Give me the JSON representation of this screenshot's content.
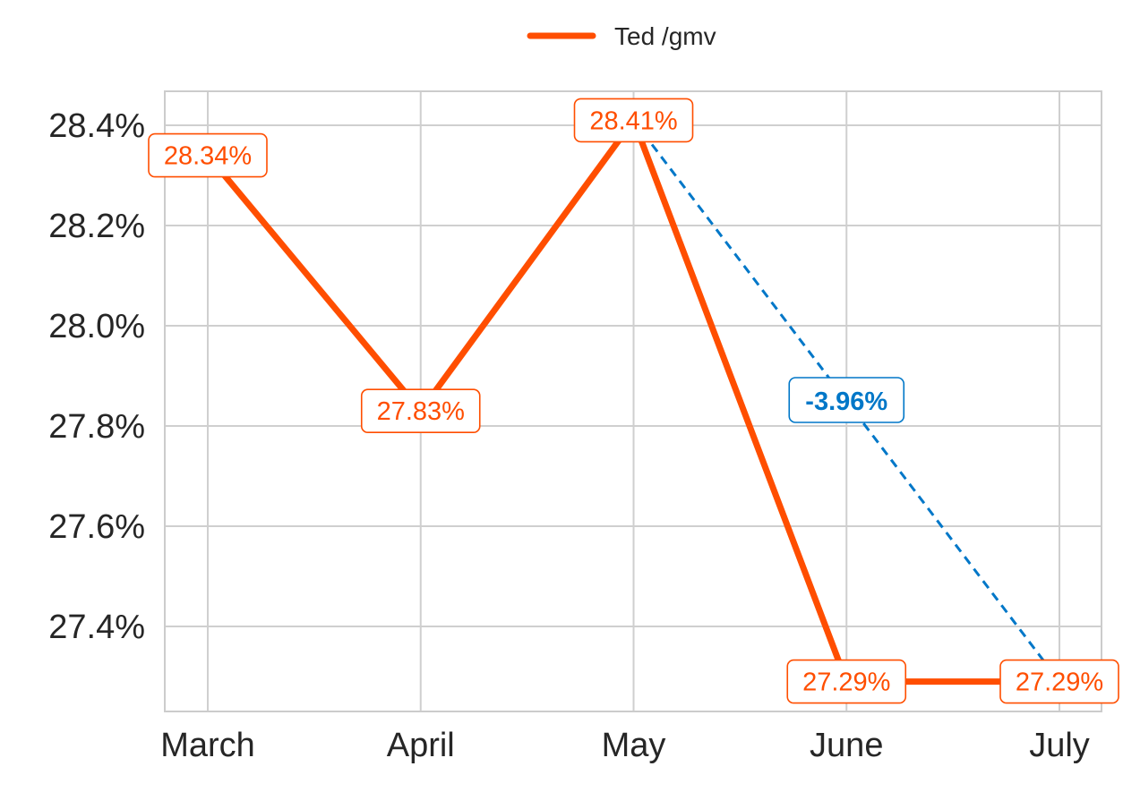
{
  "chart_data": {
    "type": "line",
    "categories": [
      "March",
      "April",
      "May",
      "June",
      "July"
    ],
    "series": [
      {
        "name": "Ted /gmv",
        "values": [
          28.34,
          27.83,
          28.41,
          27.29,
          27.29
        ],
        "value_labels": [
          "28.34%",
          "27.83%",
          "28.41%",
          "27.29%",
          "27.29%"
        ],
        "color": "#ff4e00"
      }
    ],
    "y_ticks": [
      27.4,
      27.6,
      27.8,
      28.0,
      28.2,
      28.4
    ],
    "y_tick_labels": [
      "27.4%",
      "27.6%",
      "27.8%",
      "28.0%",
      "28.2%",
      "28.4%"
    ],
    "ylim": [
      27.23,
      28.47
    ],
    "y_unit": "%",
    "grid": true,
    "legend": {
      "position": "top-center",
      "label": "Ted /gmv"
    },
    "annotation": {
      "from_category": "May",
      "to_category": "July",
      "from_value": 28.41,
      "to_value": 27.29,
      "label": "-3.96%",
      "style": "dashed",
      "color": "#0077c8"
    },
    "colors": {
      "series": "#ff4e00",
      "annotation": "#0077c8",
      "grid": "#cfcfcf",
      "axis_text": "#262626"
    }
  }
}
